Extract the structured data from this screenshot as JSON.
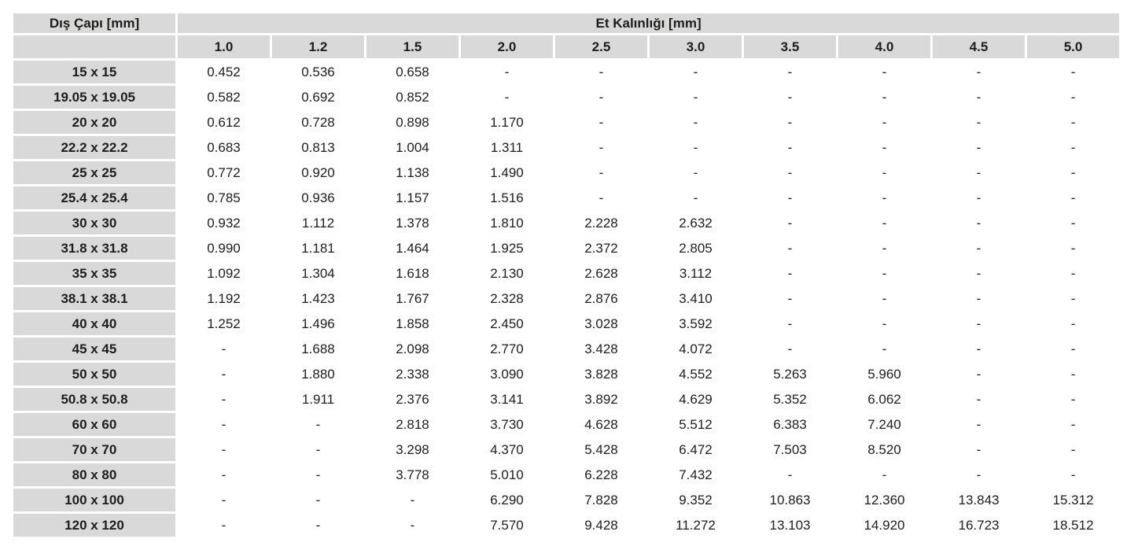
{
  "chart_data": {
    "type": "table",
    "title_row_header": "Dış Çapı [mm]",
    "title_col_group": "Et Kalınlığı [mm]",
    "columns": [
      "1.0",
      "1.2",
      "1.5",
      "2.0",
      "2.5",
      "3.0",
      "3.5",
      "4.0",
      "4.5",
      "5.0"
    ],
    "rows": [
      {
        "label": "15 x 15",
        "values": [
          "0.452",
          "0.536",
          "0.658",
          "-",
          "-",
          "-",
          "-",
          "-",
          "-",
          "-"
        ]
      },
      {
        "label": "19.05 x 19.05",
        "values": [
          "0.582",
          "0.692",
          "0.852",
          "-",
          "-",
          "-",
          "-",
          "-",
          "-",
          "-"
        ]
      },
      {
        "label": "20 x 20",
        "values": [
          "0.612",
          "0.728",
          "0.898",
          "1.170",
          "-",
          "-",
          "-",
          "-",
          "-",
          "-"
        ]
      },
      {
        "label": "22.2 x 22.2",
        "values": [
          "0.683",
          "0.813",
          "1.004",
          "1.311",
          "-",
          "-",
          "-",
          "-",
          "-",
          "-"
        ]
      },
      {
        "label": "25 x 25",
        "values": [
          "0.772",
          "0.920",
          "1.138",
          "1.490",
          "-",
          "-",
          "-",
          "-",
          "-",
          "-"
        ]
      },
      {
        "label": "25.4 x 25.4",
        "values": [
          "0.785",
          "0.936",
          "1.157",
          "1.516",
          "-",
          "-",
          "-",
          "-",
          "-",
          "-"
        ]
      },
      {
        "label": "30 x 30",
        "values": [
          "0.932",
          "1.112",
          "1.378",
          "1.810",
          "2.228",
          "2.632",
          "-",
          "-",
          "-",
          "-"
        ]
      },
      {
        "label": "31.8 x 31.8",
        "values": [
          "0.990",
          "1.181",
          "1.464",
          "1.925",
          "2.372",
          "2.805",
          "-",
          "-",
          "-",
          "-"
        ]
      },
      {
        "label": "35 x 35",
        "values": [
          "1.092",
          "1.304",
          "1.618",
          "2.130",
          "2.628",
          "3.112",
          "-",
          "-",
          "-",
          "-"
        ]
      },
      {
        "label": "38.1 x 38.1",
        "values": [
          "1.192",
          "1.423",
          "1.767",
          "2.328",
          "2.876",
          "3.410",
          "-",
          "-",
          "-",
          "-"
        ]
      },
      {
        "label": "40 x 40",
        "values": [
          "1.252",
          "1.496",
          "1.858",
          "2.450",
          "3.028",
          "3.592",
          "-",
          "-",
          "-",
          "-"
        ]
      },
      {
        "label": "45 x 45",
        "values": [
          "-",
          "1.688",
          "2.098",
          "2.770",
          "3.428",
          "4.072",
          "-",
          "-",
          "-",
          "-"
        ]
      },
      {
        "label": "50 x 50",
        "values": [
          "-",
          "1.880",
          "2.338",
          "3.090",
          "3.828",
          "4.552",
          "5.263",
          "5.960",
          "-",
          "-"
        ]
      },
      {
        "label": "50.8 x 50.8",
        "values": [
          "-",
          "1.911",
          "2.376",
          "3.141",
          "3.892",
          "4.629",
          "5.352",
          "6.062",
          "-",
          "-"
        ]
      },
      {
        "label": "60 x 60",
        "values": [
          "-",
          "-",
          "2.818",
          "3.730",
          "4.628",
          "5.512",
          "6.383",
          "7.240",
          "-",
          "-"
        ]
      },
      {
        "label": "70 x 70",
        "values": [
          "-",
          "-",
          "3.298",
          "4.370",
          "5.428",
          "6.472",
          "7.503",
          "8.520",
          "-",
          "-"
        ]
      },
      {
        "label": "80 x 80",
        "values": [
          "-",
          "-",
          "3.778",
          "5.010",
          "6.228",
          "7.432",
          "-",
          "-",
          "-",
          "-"
        ]
      },
      {
        "label": "100 x 100",
        "values": [
          "-",
          "-",
          "-",
          "6.290",
          "7.828",
          "9.352",
          "10.863",
          "12.360",
          "13.843",
          "15.312"
        ]
      },
      {
        "label": "120 x 120",
        "values": [
          "-",
          "-",
          "-",
          "7.570",
          "9.428",
          "11.272",
          "13.103",
          "14.920",
          "16.723",
          "18.512"
        ]
      }
    ]
  },
  "colors": {
    "header_bg": "#d9d9d9",
    "cell_bg": "#ffffff",
    "text": "#1d1d1b"
  }
}
